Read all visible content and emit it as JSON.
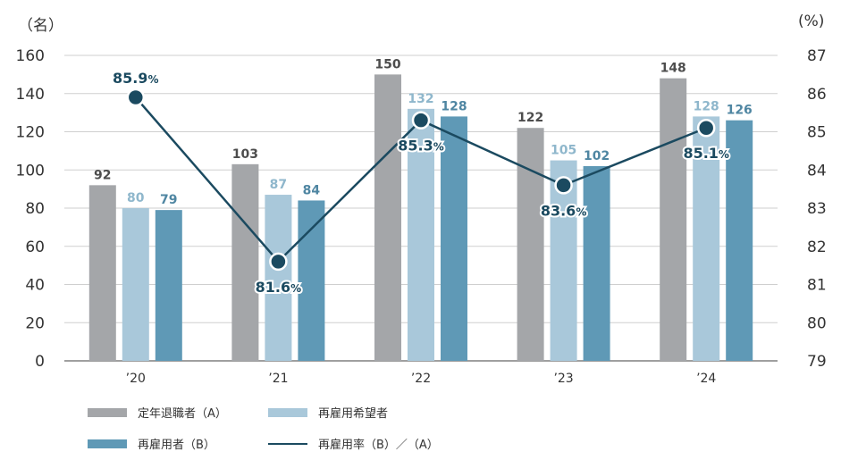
{
  "chart_data": {
    "type": "bar",
    "categories": [
      "’20",
      "’21",
      "’22",
      "’23",
      "’24"
    ],
    "series": [
      {
        "name": "定年退職者（A）",
        "values": [
          92,
          103,
          150,
          122,
          148
        ],
        "color": "#a4a6a9",
        "label_color": "#4d4d4d"
      },
      {
        "name": "再雇用希望者",
        "values": [
          80,
          87,
          132,
          105,
          128
        ],
        "color": "#a9c8da",
        "label_color": "#8fb7cc"
      },
      {
        "name": "再雇用者（B）",
        "values": [
          79,
          84,
          128,
          102,
          126
        ],
        "color": "#5f99b6",
        "label_color": "#4f86a2"
      }
    ],
    "line_series": {
      "name": "再雇用率（B）／（A）",
      "values": [
        85.9,
        81.6,
        85.3,
        83.6,
        85.1
      ],
      "label_suffix": "%",
      "color": "#1b4a60",
      "axis": "right"
    },
    "left_axis": {
      "unit": "（名）",
      "ylim": [
        0,
        160
      ],
      "ticks": [
        "0",
        "20",
        "40",
        "60",
        "80",
        "100",
        "120",
        "140",
        "160"
      ]
    },
    "right_axis": {
      "unit": "(%)",
      "ylim": [
        79,
        87
      ],
      "ticks": [
        "79",
        "80",
        "81",
        "82",
        "83",
        "84",
        "85",
        "86",
        "87"
      ]
    },
    "grid": "horizontal",
    "legend_position": "bottom-left"
  }
}
